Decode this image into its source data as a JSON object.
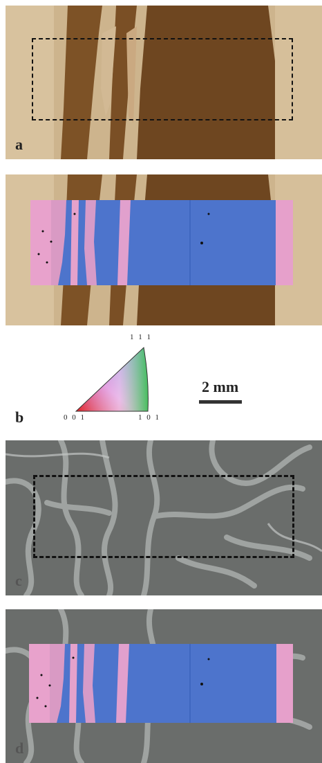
{
  "panels": {
    "a": {
      "label": "a"
    },
    "b": {
      "label": "b"
    },
    "c": {
      "label": "c"
    },
    "d": {
      "label": "d"
    }
  },
  "legend": {
    "corner_top": "1 1 1",
    "corner_left": "0 0 1",
    "corner_right": "1 0 1"
  },
  "scale_bar": {
    "text": "2 mm"
  },
  "colors": {
    "wood_light": "#c9ae84",
    "wood_dark": "#7a5027",
    "gray_bg": "#6b6e6c",
    "gray_vein": "#a9adab",
    "ebsd_blue": "#4d74cc",
    "ebsd_pink": "#e6a0cb"
  }
}
